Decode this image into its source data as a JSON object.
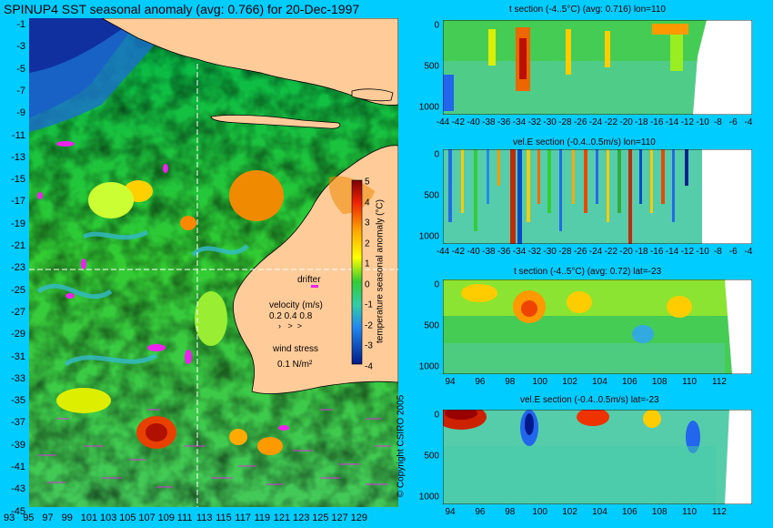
{
  "map": {
    "title": "SPINUP4 SST seasonal anomaly (avg: 0.766) for 20-Dec-1997",
    "lat_ticks": [
      "-1",
      "-3",
      "-5",
      "-7",
      "-9",
      "-11",
      "-13",
      "-15",
      "-17",
      "-19",
      "-21",
      "-23",
      "-25",
      "-27",
      "-29",
      "-31",
      "-33",
      "-35",
      "-37",
      "-39",
      "-41",
      "-43",
      "-45"
    ],
    "lon_ticks": [
      "93",
      "95",
      "97",
      "99",
      "101",
      "103",
      "105",
      "107",
      "109",
      "111",
      "113",
      "115",
      "117",
      "119",
      "121",
      "123",
      "125",
      "127",
      "129"
    ],
    "colorbar": {
      "label": "temperature seasonal anomaly (°C)",
      "ticks": [
        "5",
        "4",
        "3",
        "2",
        "1",
        "0",
        "-1",
        "-2",
        "-3",
        "-4"
      ]
    },
    "legend": {
      "drifter": "drifter",
      "velocity_title": "velocity (m/s)",
      "velocity_values": "0.2 0.4 0.8",
      "wind_title": "wind stress",
      "wind_value": "0.1 N/m²"
    },
    "copyright": "© Copyright CSIRO 2005"
  },
  "panels": {
    "p1": {
      "title": "t section (-4..5°C) (avg: 0.716) lon=110",
      "y_ticks": [
        "0",
        "500",
        "1000"
      ],
      "x_ticks": [
        "-44",
        "-42",
        "-40",
        "-38",
        "-36",
        "-34",
        "-32",
        "-30",
        "-28",
        "-26",
        "-24",
        "-22",
        "-20",
        "-18",
        "-16",
        "-14",
        "-12",
        "-10",
        "-8",
        "-6",
        "-4"
      ]
    },
    "p2": {
      "title": "vel.E section (-0.4..0.5m/s) lon=110",
      "y_ticks": [
        "0",
        "500",
        "1000"
      ],
      "x_ticks": [
        "-44",
        "-42",
        "-40",
        "-38",
        "-36",
        "-34",
        "-32",
        "-30",
        "-28",
        "-26",
        "-24",
        "-22",
        "-20",
        "-18",
        "-16",
        "-14",
        "-12",
        "-10",
        "-8",
        "-6",
        "-4"
      ]
    },
    "p3": {
      "title": "t section (-4..5°C) (avg: 0.72) lat=-23",
      "y_ticks": [
        "0",
        "500",
        "1000"
      ],
      "x_ticks": [
        "94",
        "96",
        "98",
        "100",
        "102",
        "104",
        "106",
        "108",
        "110",
        "112"
      ]
    },
    "p4": {
      "title": "vel.E section (-0.4..0.5m/s) lat=-23",
      "y_ticks": [
        "0",
        "500",
        "1000"
      ],
      "x_ticks": [
        "94",
        "96",
        "98",
        "100",
        "102",
        "104",
        "106",
        "108",
        "110",
        "112"
      ]
    }
  }
}
